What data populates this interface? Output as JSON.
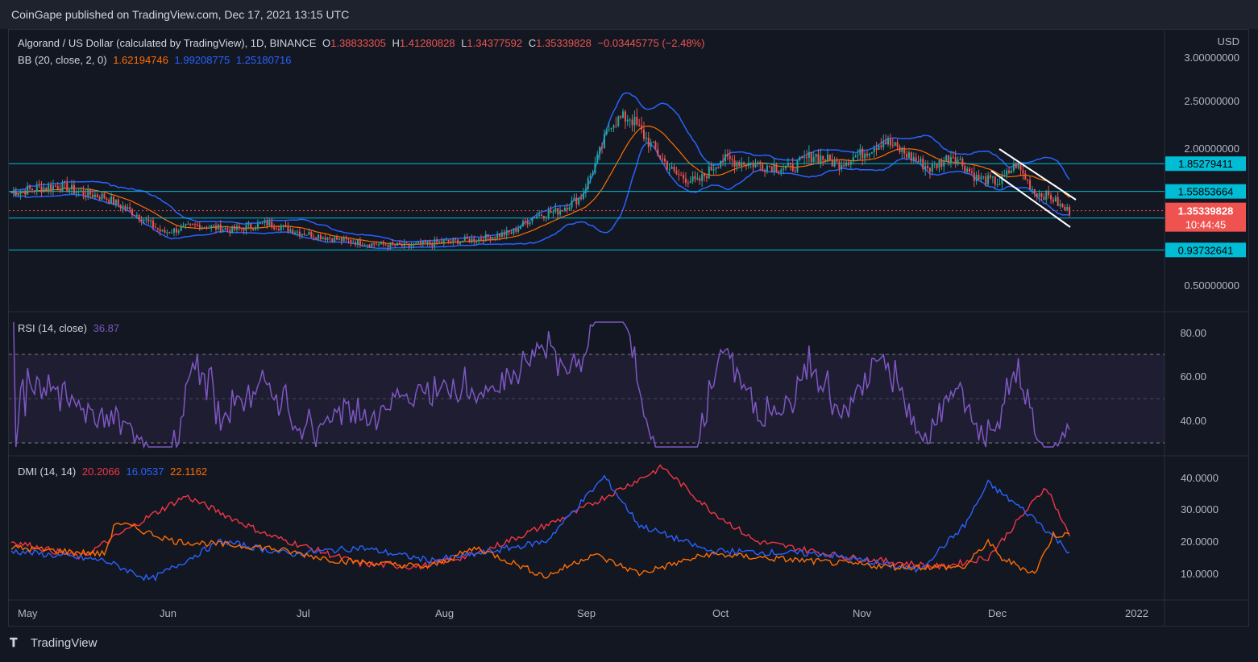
{
  "header": {
    "publisher": "CoinGape published on TradingView.com, Dec 17, 2021 13:15 UTC"
  },
  "main_legend": {
    "symbol": "Algorand / US Dollar (calculated by TradingView), 1D, BINANCE",
    "o_label": "O",
    "o": "1.38833305",
    "h_label": "H",
    "h": "1.41280828",
    "l_label": "L",
    "l": "1.34377592",
    "c_label": "C",
    "c": "1.35339828",
    "change": "−0.03445775 (−2.48%)"
  },
  "bb_legend": {
    "label": "BB (20, close, 2, 0)",
    "basis": "1.62194746",
    "upper": "1.99208775",
    "lower": "1.25180716"
  },
  "rsi_legend": {
    "label": "RSI (14, close)",
    "value": "36.87"
  },
  "dmi_legend": {
    "label": "DMI (14, 14)",
    "plus": "20.2066",
    "minus": "16.0537",
    "adx": "22.1162"
  },
  "currency": "USD",
  "price_axis": [
    "3.00000000",
    "2.50000000",
    "2.00000000",
    "0.50000000"
  ],
  "rsi_axis": [
    "80.00",
    "60.00",
    "40.00"
  ],
  "dmi_axis": [
    "40.0000",
    "30.0000",
    "20.0000",
    "10.0000"
  ],
  "levels": [
    {
      "value": "1.85279411",
      "price": 1.85279411
    },
    {
      "value": "1.55853664",
      "price": 1.55853664
    },
    {
      "value": "1.27517759",
      "price": 1.27517759
    },
    {
      "value": "0.93732641",
      "price": 0.93732641
    }
  ],
  "last_price": {
    "value": "1.35339828",
    "countdown": "10:44:45",
    "price": 1.35339828
  },
  "time_axis": [
    "May",
    "Jun",
    "Jul",
    "Aug",
    "Sep",
    "Oct",
    "Nov",
    "Dec",
    "2022"
  ],
  "footer": {
    "brand": "TradingView"
  },
  "colors": {
    "up": "#26a69a",
    "down": "#ef5350",
    "bb": "#2962ff",
    "basis": "#ff6d00",
    "rsi": "#7e57c2",
    "level": "#00bcd4",
    "dmi_plus": "#f23645",
    "dmi_minus": "#2962ff",
    "dmi_adx": "#ff6d00"
  },
  "chart_data": [
    {
      "type": "line",
      "title": "Algorand / US Dollar (calculated by TradingView), 1D, BINANCE",
      "x": [
        "May",
        "Jun",
        "Jul",
        "Aug",
        "Sep",
        "Oct",
        "Nov",
        "Dec"
      ],
      "ylim": [
        0.3,
        3.1
      ],
      "series": [
        {
          "name": "close",
          "values": [
            1.55,
            1.2,
            1.05,
            1.0,
            2.1,
            1.85,
            1.9,
            1.35
          ]
        },
        {
          "name": "BB basis",
          "values": [
            1.6,
            1.25,
            1.05,
            0.98,
            1.6,
            1.9,
            1.88,
            1.62
          ]
        }
      ]
    },
    {
      "type": "line",
      "title": "RSI (14, close)",
      "ylim": [
        28,
        88
      ],
      "series": [
        {
          "name": "RSI",
          "values": [
            52,
            45,
            50,
            38,
            70,
            52,
            58,
            37
          ]
        }
      ]
    },
    {
      "type": "line",
      "title": "DMI (14, 14)",
      "ylim": [
        4,
        45
      ],
      "series": [
        {
          "name": "+DI",
          "values": [
            18,
            33,
            20,
            12,
            42,
            20,
            12,
            20
          ]
        },
        {
          "name": "−DI",
          "values": [
            16,
            10,
            20,
            15,
            20,
            17,
            38,
            16
          ]
        },
        {
          "name": "ADX",
          "values": [
            18,
            20,
            16,
            12,
            15,
            14,
            14,
            22
          ]
        }
      ]
    }
  ]
}
